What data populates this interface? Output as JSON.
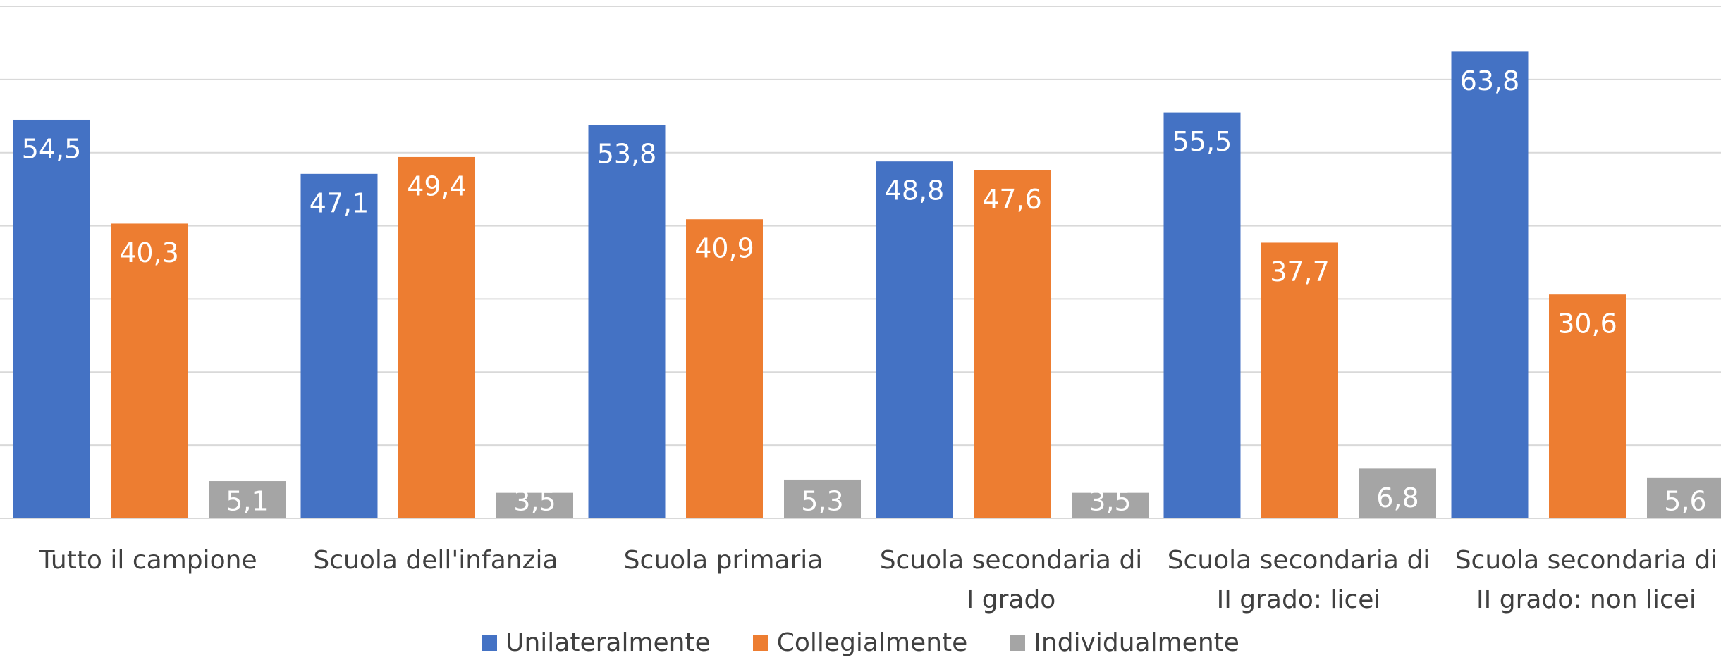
{
  "chart_data": {
    "type": "bar",
    "categories": [
      "Tutto il campione",
      "Scuola dell'infanzia",
      "Scuola primaria",
      "Scuola secondaria di I grado",
      "Scuola secondaria di II grado: licei",
      "Scuola secondaria di II grado: non licei"
    ],
    "series": [
      {
        "name": "Unilateralmente",
        "color": "#4472c4",
        "values": [
          54.5,
          47.1,
          53.8,
          48.8,
          55.5,
          63.8
        ],
        "value_labels": [
          "54,5",
          "47,1",
          "53,8",
          "48,8",
          "55,5",
          "63,8"
        ]
      },
      {
        "name": "Collegialmente",
        "color": "#ed7d31",
        "values": [
          40.3,
          49.4,
          40.9,
          47.6,
          37.7,
          30.6
        ],
        "value_labels": [
          "40,3",
          "49,4",
          "40,9",
          "47,6",
          "37,7",
          "30,6"
        ]
      },
      {
        "name": "Individualmente",
        "color": "#a5a5a5",
        "values": [
          5.1,
          3.5,
          5.3,
          3.5,
          6.8,
          5.6
        ],
        "value_labels": [
          "5,1",
          "3,5",
          "5,3",
          "3,5",
          "6,8",
          "5,6"
        ]
      }
    ],
    "ylim": [
      0,
      70
    ],
    "yticks": [
      0,
      10,
      20,
      30,
      40,
      50,
      60,
      70
    ],
    "grid": true,
    "legend": "bottom"
  }
}
